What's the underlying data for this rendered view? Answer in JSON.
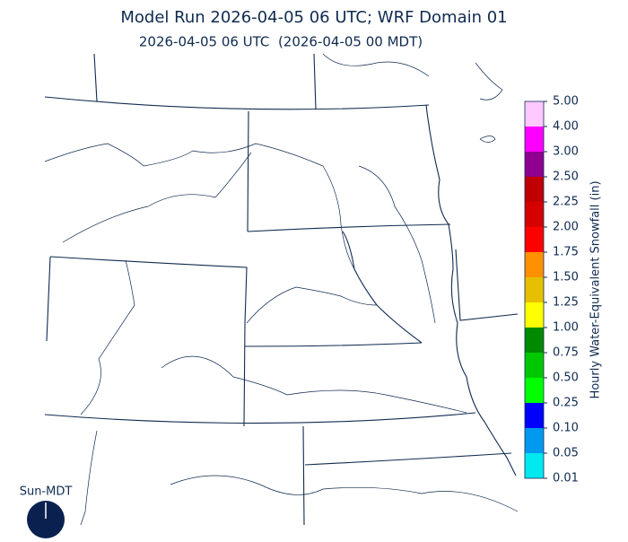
{
  "header": {
    "title": "Model Run 2026-04-05 06 UTC; WRF Domain 01",
    "subtitle": "2026-04-05 06 UTC  (2026-04-05 00 MDT)"
  },
  "colorbar": {
    "label": "Hourly Water-Equivalent Snowfall (in)",
    "ticks": [
      {
        "value": 0.01,
        "label": "0.01"
      },
      {
        "value": 0.05,
        "label": "0.05"
      },
      {
        "value": 0.1,
        "label": "0.10"
      },
      {
        "value": 0.25,
        "label": "0.25"
      },
      {
        "value": 0.5,
        "label": "0.50"
      },
      {
        "value": 0.75,
        "label": "0.75"
      },
      {
        "value": 1,
        "label": "1.00"
      },
      {
        "value": 1.25,
        "label": "1.25"
      },
      {
        "value": 1.5,
        "label": "1.50"
      },
      {
        "value": 1.75,
        "label": "1.75"
      },
      {
        "value": 2,
        "label": "2.00"
      },
      {
        "value": 2.25,
        "label": "2.25"
      },
      {
        "value": 2.5,
        "label": "2.50"
      },
      {
        "value": 3,
        "label": "3.00"
      },
      {
        "value": 4,
        "label": "4.00"
      },
      {
        "value": 5,
        "label": "5.00"
      }
    ],
    "colors": [
      "#00e8f0",
      "#0099f0",
      "#0000ff",
      "#00ff00",
      "#00c800",
      "#008a00",
      "#ffff00",
      "#e6c000",
      "#ff9000",
      "#ff0000",
      "#d60000",
      "#c00000",
      "#900090",
      "#ff00ff",
      "#ffc8ff"
    ]
  },
  "sun": {
    "label": "Sun-MDT"
  }
}
